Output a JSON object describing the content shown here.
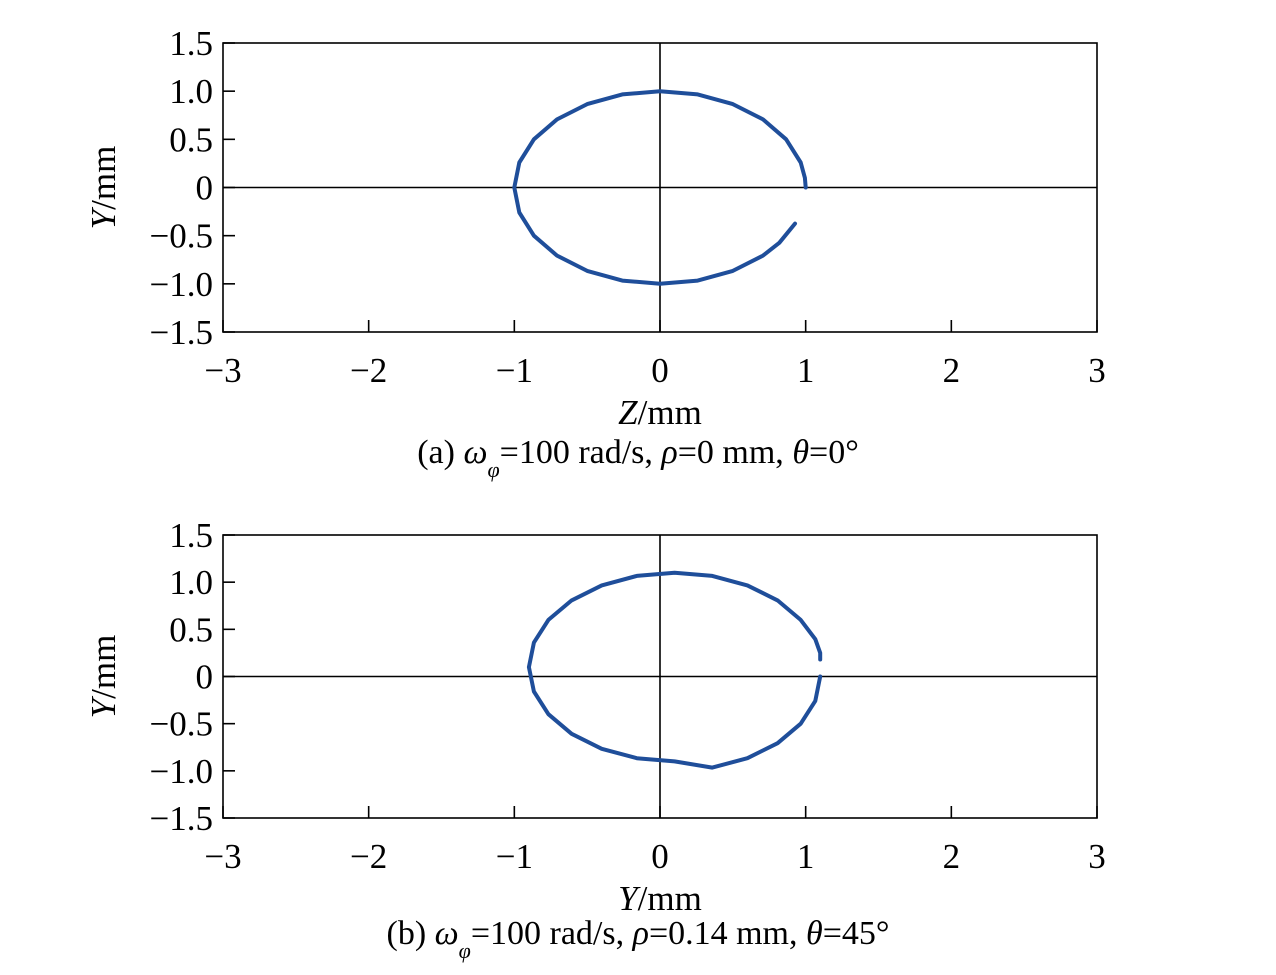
{
  "colors": {
    "curve": "#1f4e9a",
    "axes": "#000000"
  },
  "chart_data": [
    {
      "type": "line",
      "caption": {
        "prefix": "(a) ",
        "omega": "ω",
        "omega_sub": "φ",
        "middle": "=100 rad/s, ",
        "rho": "ρ",
        "rest1": "=0 mm, ",
        "theta": "θ",
        "rest2": "=0°"
      },
      "xlabel": {
        "var": "Z",
        "unit": "/mm"
      },
      "ylabel": {
        "var": "Y",
        "unit": "/mm"
      },
      "xlim": [
        -3,
        3
      ],
      "ylim": [
        -1.5,
        1.5
      ],
      "xticks": [
        "−3",
        "−2",
        "−1",
        "0",
        "1",
        "2",
        "3"
      ],
      "yticks": [
        "1.5",
        "1.0",
        "0.5",
        "0",
        "−0.5",
        "−1.0",
        "−1.5"
      ],
      "series": [
        {
          "x": [
            1.0,
            0.995,
            0.966,
            0.866,
            0.707,
            0.5,
            0.259,
            0.0,
            -0.259,
            -0.5,
            -0.707,
            -0.866,
            -0.966,
            -1.0,
            -0.966,
            -0.866,
            -0.707,
            -0.5,
            -0.259,
            0.0,
            0.259,
            0.5,
            0.707,
            0.819,
            0.927
          ],
          "y": [
            0.0,
            0.1,
            0.259,
            0.5,
            0.707,
            0.866,
            0.966,
            1.0,
            0.966,
            0.866,
            0.707,
            0.5,
            0.259,
            0.0,
            -0.259,
            -0.5,
            -0.707,
            -0.866,
            -0.966,
            -1.0,
            -0.966,
            -0.866,
            -0.707,
            -0.574,
            -0.375
          ]
        }
      ]
    },
    {
      "type": "line",
      "caption": {
        "prefix": "(b) ",
        "omega": "ω",
        "omega_sub": "φ",
        "middle": "=100 rad/s, ",
        "rho": "ρ",
        "rest1": "=0.14 mm, ",
        "theta": "θ",
        "rest2": "=45°"
      },
      "xlabel": {
        "var": "Y",
        "unit": "/mm"
      },
      "ylabel": {
        "var": "Y",
        "unit": "/mm"
      },
      "xlim": [
        -3,
        3
      ],
      "ylim": [
        -1.5,
        1.5
      ],
      "xticks": [
        "−3",
        "−2",
        "−1",
        "0",
        "1",
        "2",
        "3"
      ],
      "yticks": [
        "1.5",
        "1.0",
        "0.5",
        "0",
        "−0.5",
        "−1.0",
        "−1.5"
      ],
      "series": [
        {
          "x": [
            1.1,
            1.066,
            0.966,
            0.807,
            0.6,
            0.359,
            0.1,
            -0.159,
            -0.4,
            -0.607,
            -0.766,
            -0.866,
            -0.9,
            -0.866,
            -0.766,
            -0.607,
            -0.4,
            -0.159,
            0.1,
            0.359,
            0.6,
            0.807,
            0.966,
            1.066,
            1.1,
            1.1
          ],
          "y": [
            0.0,
            -0.259,
            -0.5,
            -0.707,
            -0.866,
            -0.966,
            -0.9,
            -0.866,
            -0.766,
            -0.607,
            -0.4,
            -0.159,
            0.1,
            0.359,
            0.6,
            0.807,
            0.966,
            1.066,
            1.1,
            1.066,
            0.966,
            0.807,
            0.6,
            0.395,
            0.25,
            0.18
          ]
        }
      ]
    }
  ]
}
